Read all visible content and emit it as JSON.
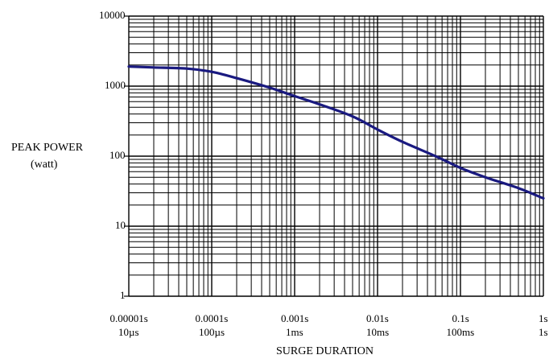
{
  "chart_data": {
    "type": "line",
    "title": "",
    "xlabel": "SURGE DURATION",
    "ylabel": [
      "PEAK POWER",
      "(watt)"
    ],
    "x_scale": "log",
    "y_scale": "log",
    "xlim": [
      1e-05,
      1
    ],
    "ylim": [
      1,
      10000
    ],
    "grid": true,
    "x_ticks": [
      {
        "value": 1e-05,
        "label": "0.00001s",
        "sublabel": "10µs"
      },
      {
        "value": 0.0001,
        "label": "0.0001s",
        "sublabel": "100µs"
      },
      {
        "value": 0.001,
        "label": "0.001s",
        "sublabel": "1ms"
      },
      {
        "value": 0.01,
        "label": "0.01s",
        "sublabel": "10ms"
      },
      {
        "value": 0.1,
        "label": "0.1s",
        "sublabel": "100ms"
      },
      {
        "value": 1,
        "label": "1s",
        "sublabel": "1s"
      }
    ],
    "y_ticks": [
      {
        "value": 1,
        "label": "1"
      },
      {
        "value": 10,
        "label": "10"
      },
      {
        "value": 100,
        "label": "100"
      },
      {
        "value": 1000,
        "label": "1000"
      },
      {
        "value": 10000,
        "label": "10000"
      }
    ],
    "series": [
      {
        "color": "#1a1a80",
        "x": [
          1e-05,
          2e-05,
          5e-05,
          0.0001,
          0.0002,
          0.0005,
          0.001,
          0.002,
          0.005,
          0.01,
          0.02,
          0.05,
          0.1,
          0.2,
          0.5,
          1
        ],
        "y": [
          1900,
          1850,
          1780,
          1600,
          1300,
          950,
          720,
          550,
          370,
          240,
          160,
          100,
          68,
          50,
          35,
          25
        ]
      }
    ]
  }
}
